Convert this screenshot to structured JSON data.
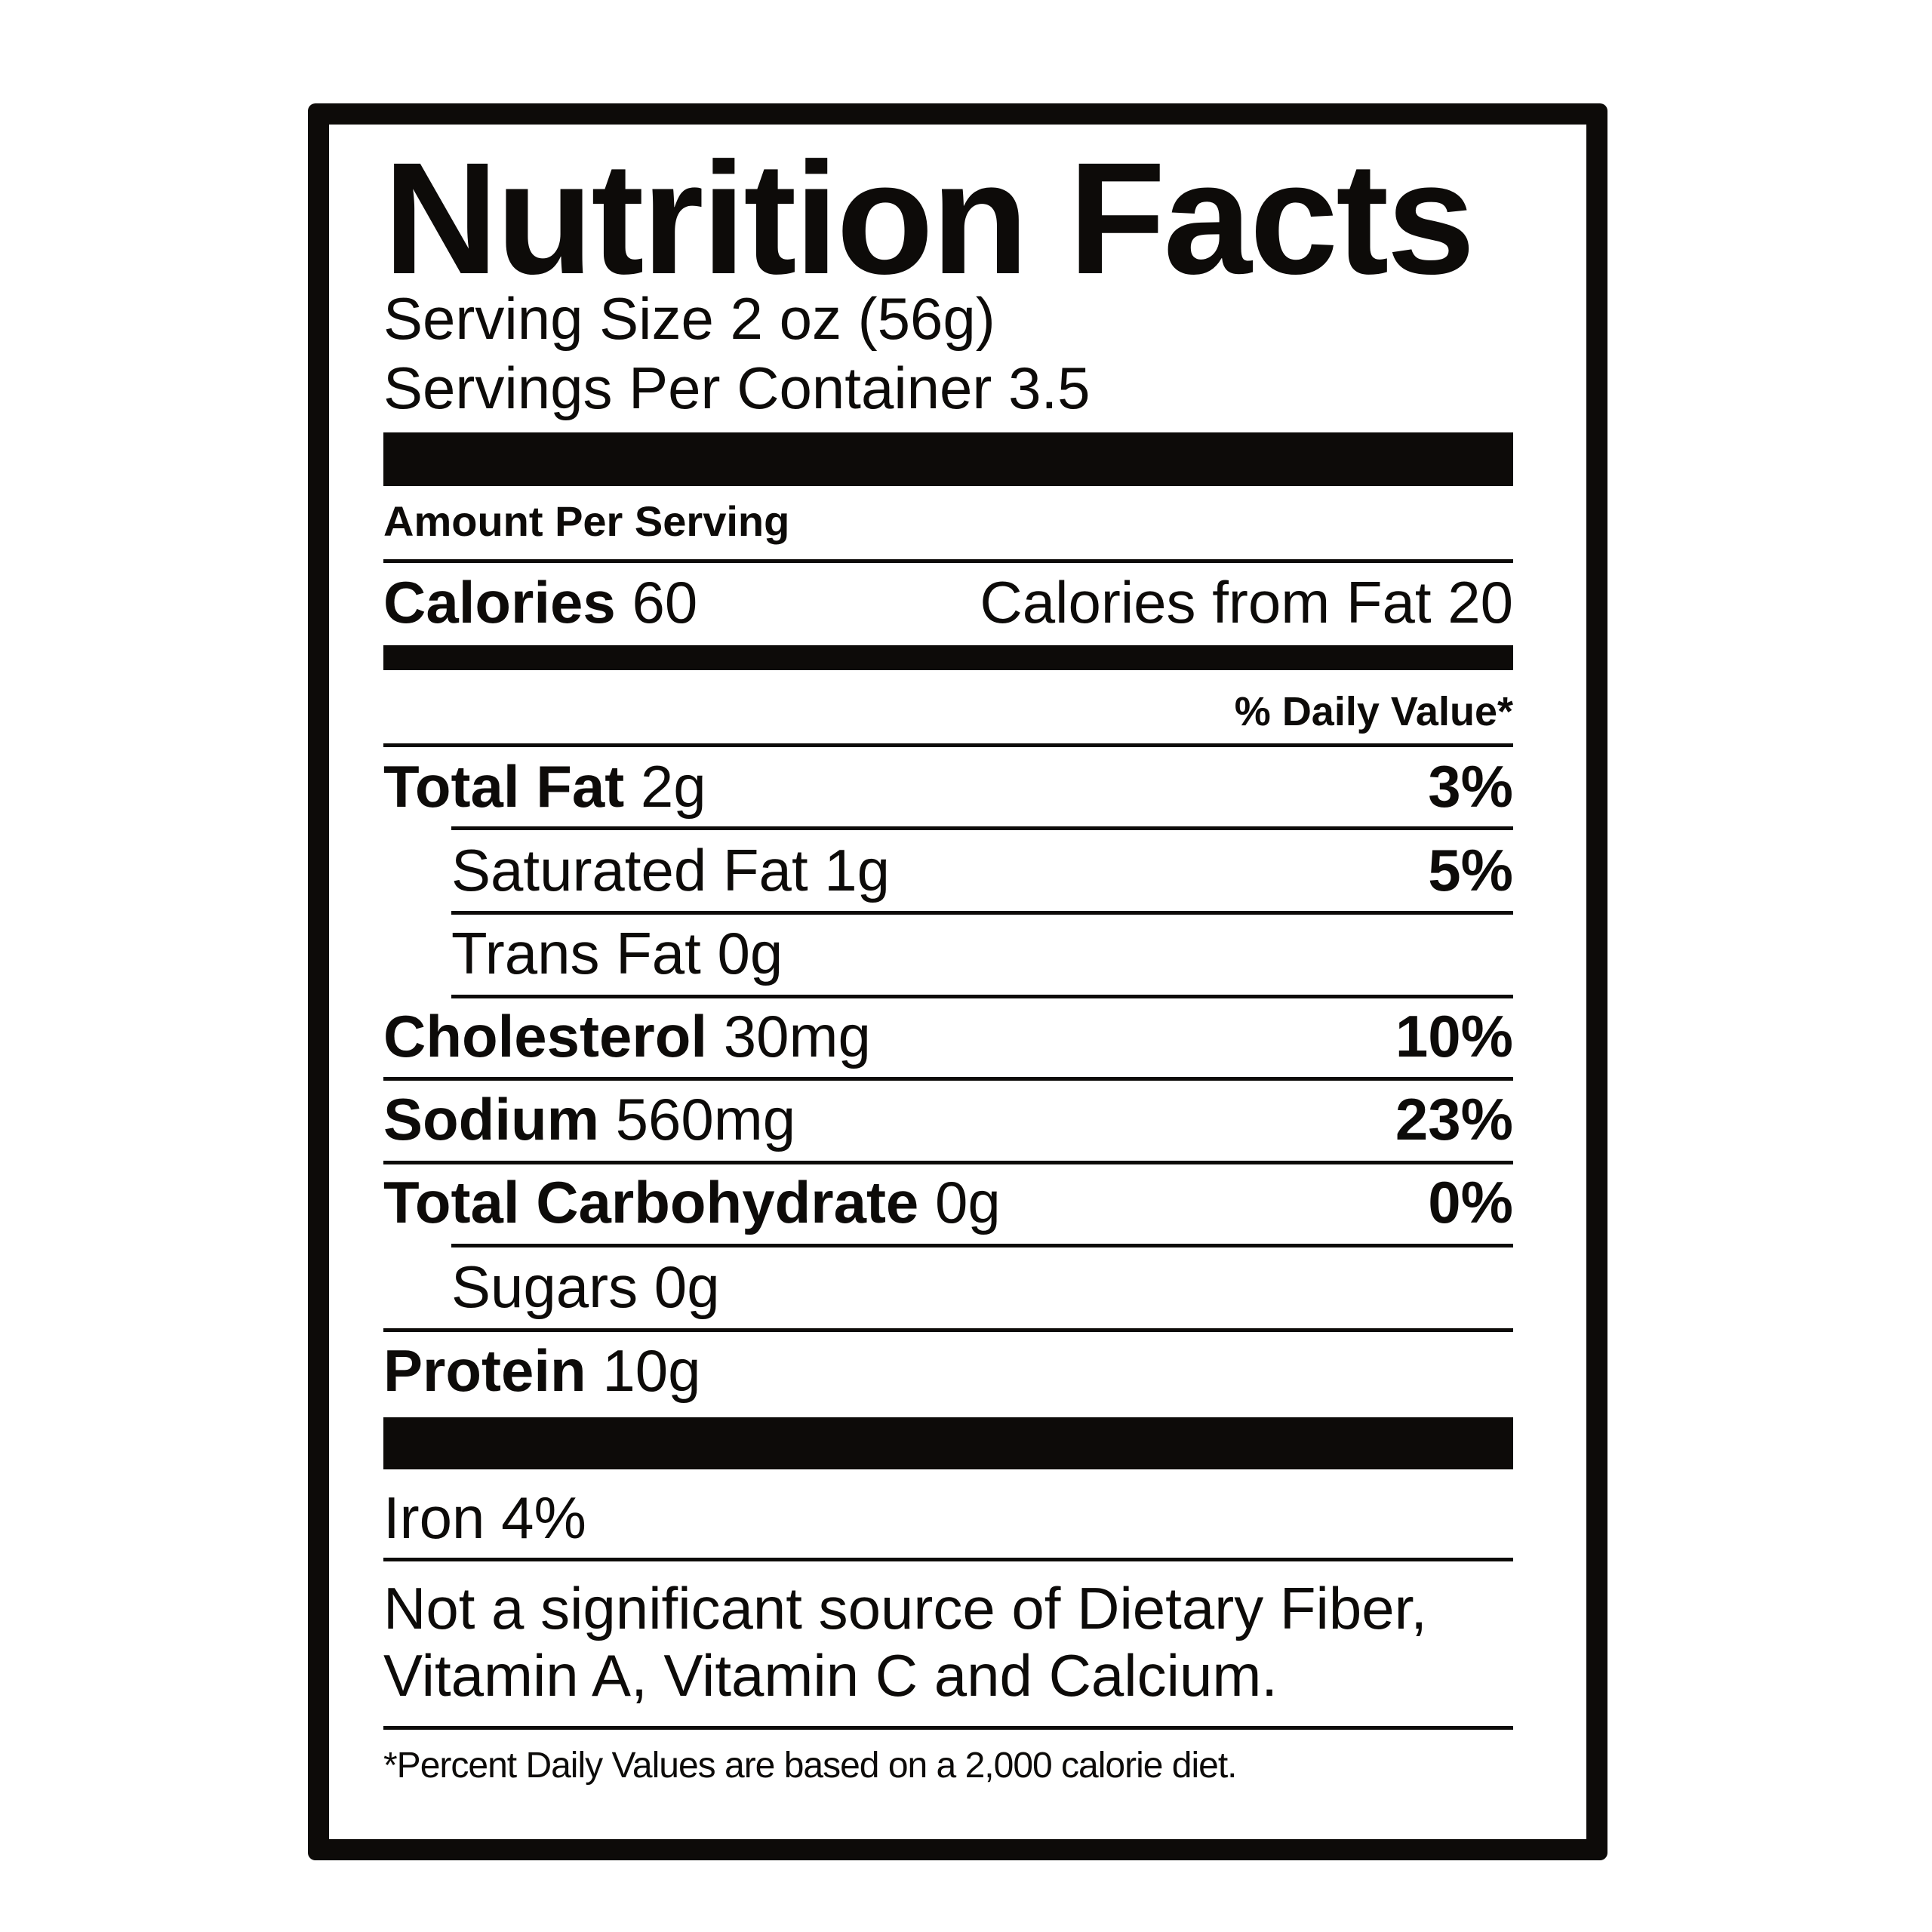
{
  "title": "Nutrition Facts",
  "serving_size": "Serving Size 2 oz (56g)",
  "servings_per_container": "Servings Per Container 3.5",
  "amount_per_serving": "Amount Per Serving",
  "calories": {
    "label": "Calories",
    "value": "60",
    "from_fat": "Calories from Fat 20"
  },
  "daily_value_header": "% Daily Value*",
  "nutrients": [
    {
      "label": "Total Fat",
      "amount": "2g",
      "dv": "3%"
    },
    {
      "label": "Saturated Fat 1g",
      "amount": "",
      "dv": "5%"
    },
    {
      "label": "Trans Fat 0g",
      "amount": "",
      "dv": ""
    },
    {
      "label": "Cholesterol",
      "amount": "30mg",
      "dv": "10%"
    },
    {
      "label": "Sodium",
      "amount": "560mg",
      "dv": "23%"
    },
    {
      "label": "Total Carbohydrate",
      "amount": "0g",
      "dv": "0%"
    },
    {
      "label": "Sugars 0g",
      "amount": "",
      "dv": ""
    },
    {
      "label": "Protein",
      "amount": "10g",
      "dv": ""
    }
  ],
  "iron": "Iron 4%",
  "not_significant": [
    "Not a significant source of Dietary Fiber,",
    "Vitamin A, Vitamin C and Calcium."
  ],
  "footnote": "*Percent Daily Values are based on a 2,000 calorie diet."
}
